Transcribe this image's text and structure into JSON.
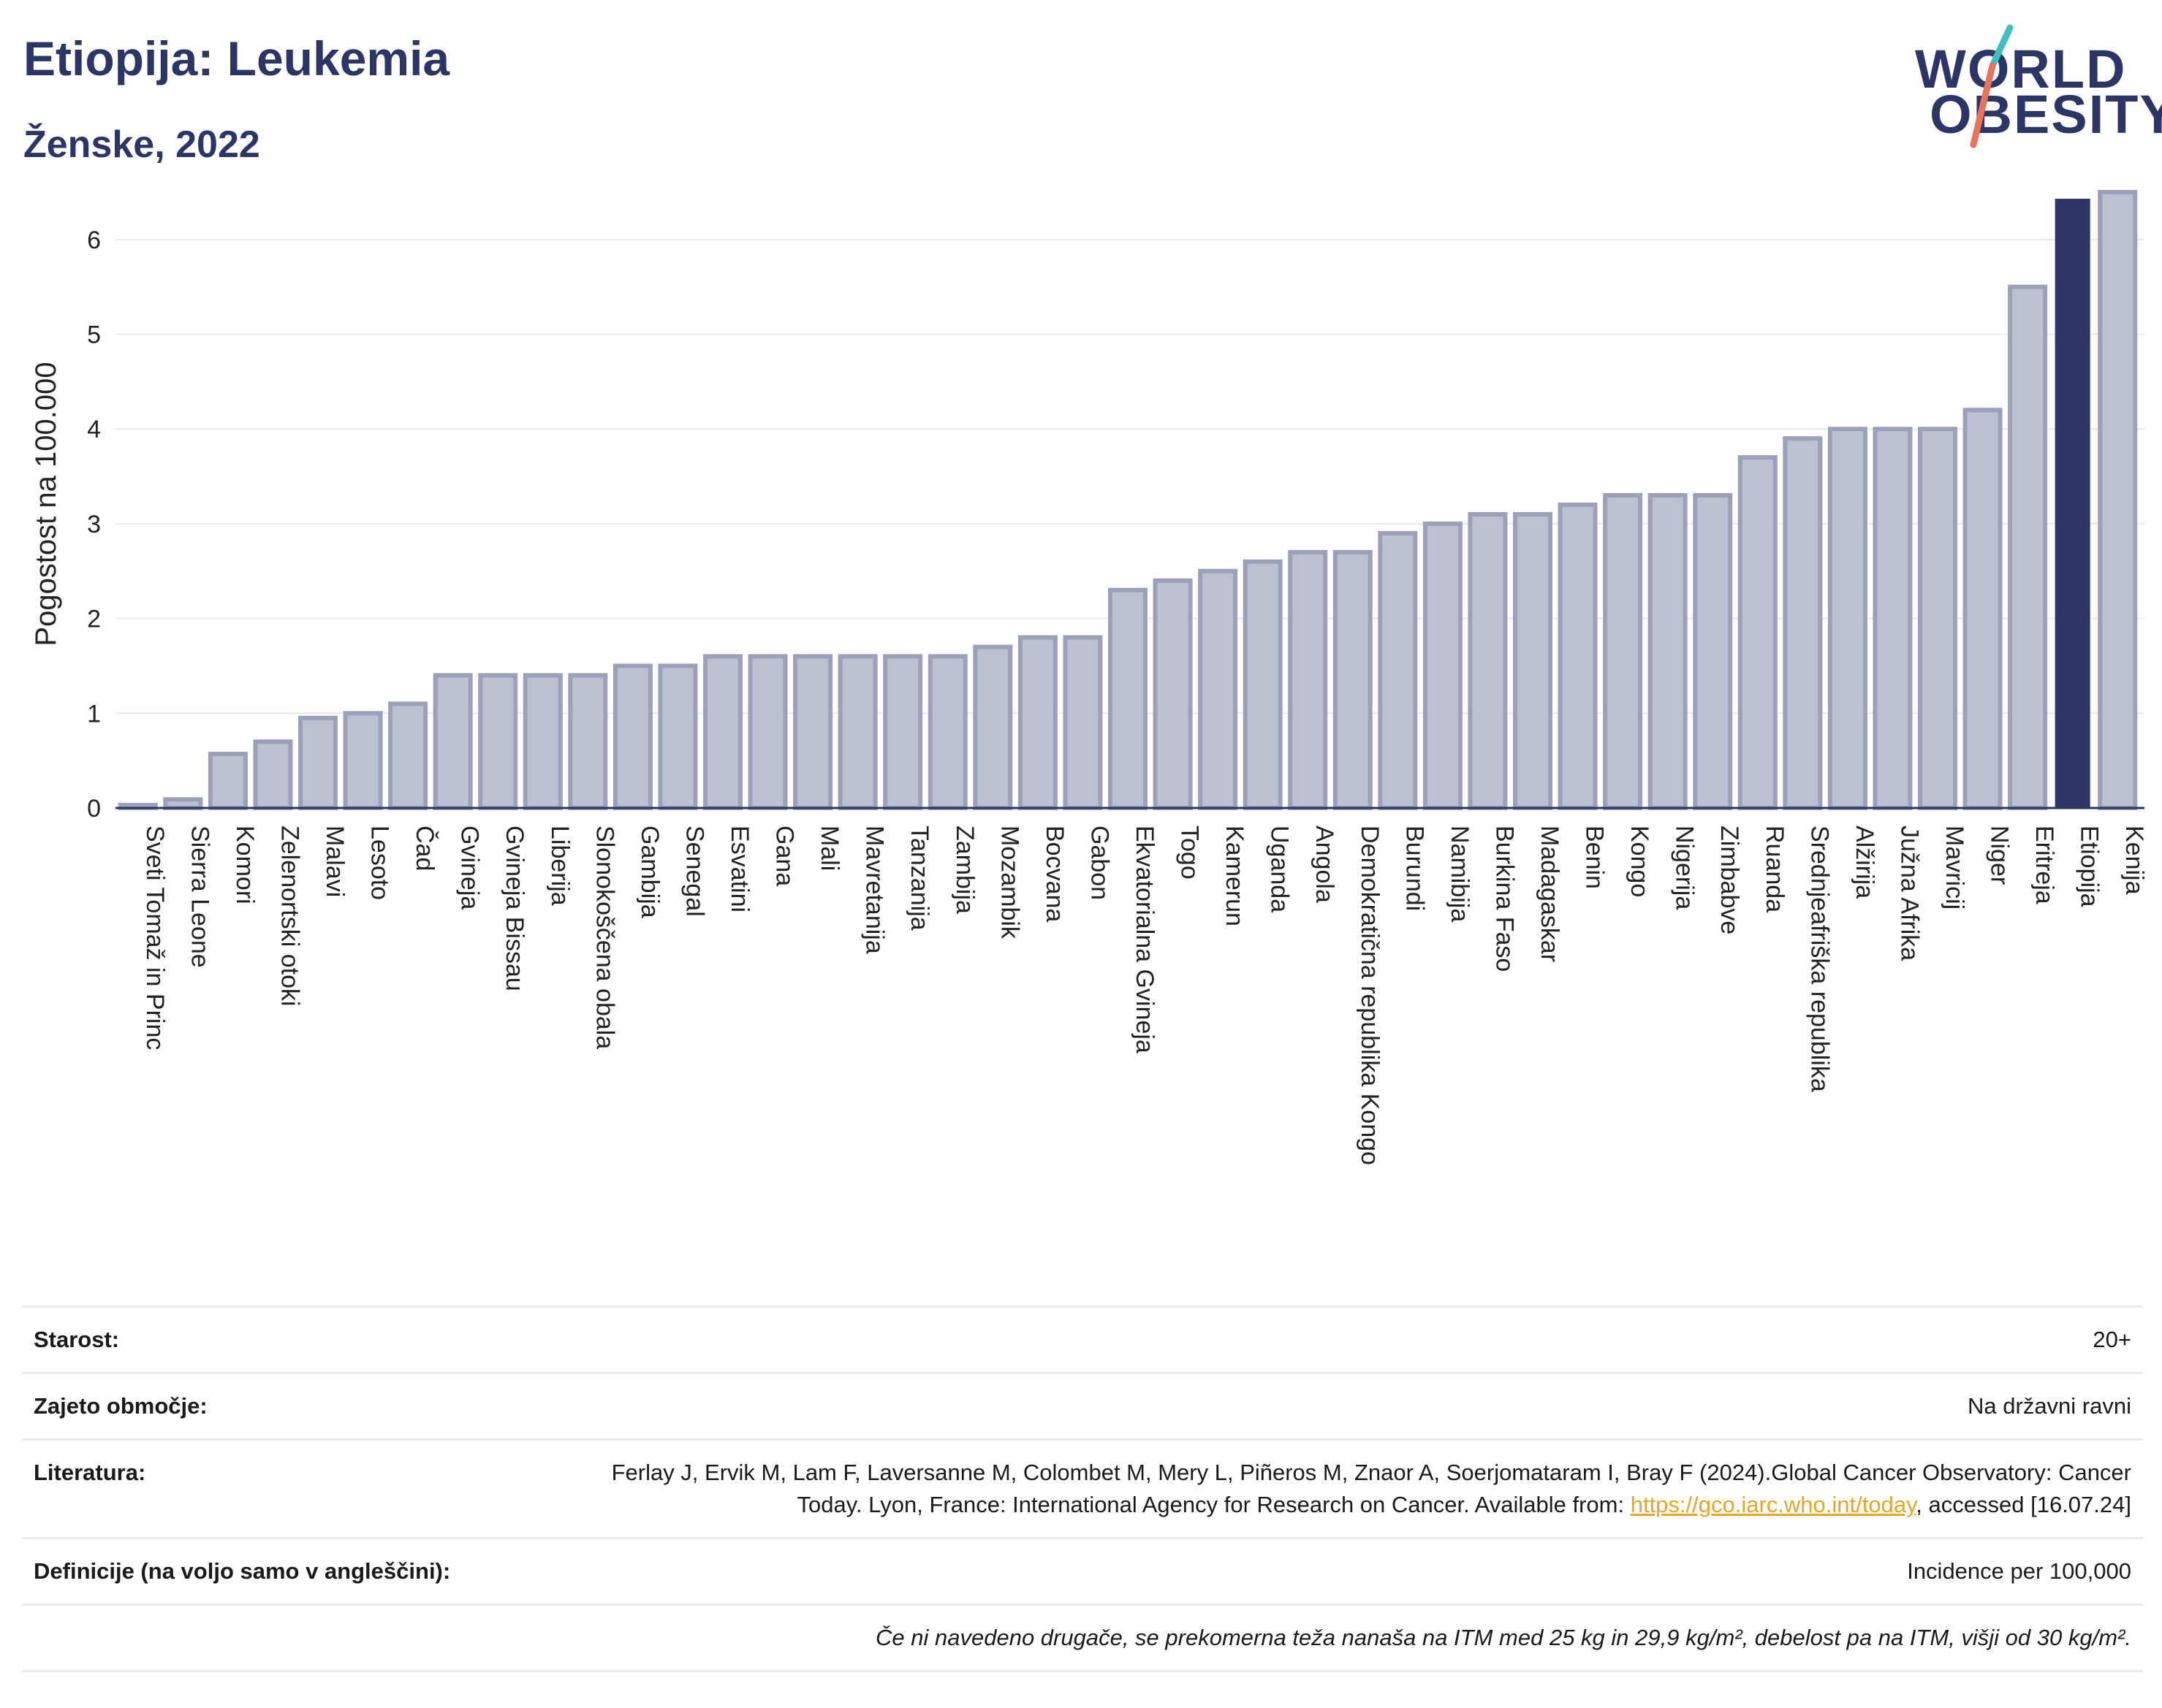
{
  "header": {
    "title": "Etiopija: Leukemia",
    "subtitle": "Ženske, 2022"
  },
  "logo": {
    "line1": "WORLD",
    "line2": "OBESITY"
  },
  "colors": {
    "default_bar": "#bcc1d1",
    "default_bar_border": "#9aa1b8",
    "highlight_bar": "#2b3566",
    "text_dark": "#2b3566",
    "link": "#e8a624"
  },
  "chart_data": {
    "type": "bar",
    "ylabel": "Pogostost na 100.000",
    "ylim": [
      0,
      6.6
    ],
    "yticks": [
      0,
      1,
      2,
      3,
      4,
      5,
      6
    ],
    "grid": true,
    "highlight": "Etiopija",
    "categories": [
      "Sveti Tomaž in Princ",
      "Sierra Leone",
      "Komori",
      "Zelenortski otoki",
      "Malavi",
      "Lesoto",
      "Čad",
      "Gvineja",
      "Gvineja Bissau",
      "Liberija",
      "Slonokoščena obala",
      "Gambija",
      "Senegal",
      "Esvatini",
      "Gana",
      "Mali",
      "Mavretanija",
      "Tanzanija",
      "Zambija",
      "Mozambik",
      "Bocvana",
      "Gabon",
      "Ekvatorialna Gvineja",
      "Togo",
      "Kamerun",
      "Uganda",
      "Angola",
      "Demokratična republika Kongo",
      "Burundi",
      "Namibija",
      "Burkina Faso",
      "Madagaskar",
      "Benin",
      "Kongo",
      "Nigerija",
      "Zimbabve",
      "Ruanda",
      "Srednjeafriška republika",
      "Alžirija",
      "Južna Afrika",
      "Mavricij",
      "Niger",
      "Eritreja",
      "Etiopija",
      "Kenija"
    ],
    "values": [
      0.03,
      0.09,
      0.57,
      0.7,
      0.95,
      1.0,
      1.1,
      1.4,
      1.4,
      1.4,
      1.4,
      1.5,
      1.5,
      1.6,
      1.6,
      1.6,
      1.6,
      1.6,
      1.6,
      1.7,
      1.8,
      1.8,
      2.3,
      2.4,
      2.5,
      2.6,
      2.7,
      2.7,
      2.9,
      3.0,
      3.1,
      3.1,
      3.2,
      3.3,
      3.3,
      3.3,
      3.7,
      3.9,
      4.0,
      4.0,
      4.0,
      4.2,
      5.5,
      6.43,
      6.5
    ]
  },
  "info": {
    "age_label": "Starost:",
    "age_value": "20+",
    "coverage_label": "Zajeto območje:",
    "coverage_value": "Na državni ravni",
    "literature_label": "Literatura:",
    "literature_text_before": "Ferlay J, Ervik M, Lam F, Laversanne M, Colombet M, Mery L, Piñeros M, Znaor A, Soerjomataram I, Bray F (2024).Global Cancer Observatory: Cancer Today. Lyon, France: International Agency for Research on Cancer. Available from: ",
    "literature_link": "https://gco.iarc.who.int/today",
    "literature_text_after": ", accessed [16.07.24]",
    "definitions_label": "Definicije (na voljo samo v angleščini):",
    "definitions_value": "Incidence per 100,000",
    "note": "Če ni navedeno drugače, se prekomerna teža nanaša na ITM med 25 kg in 29,9 kg/m², debelost pa na ITM, višji od 30 kg/m²."
  }
}
